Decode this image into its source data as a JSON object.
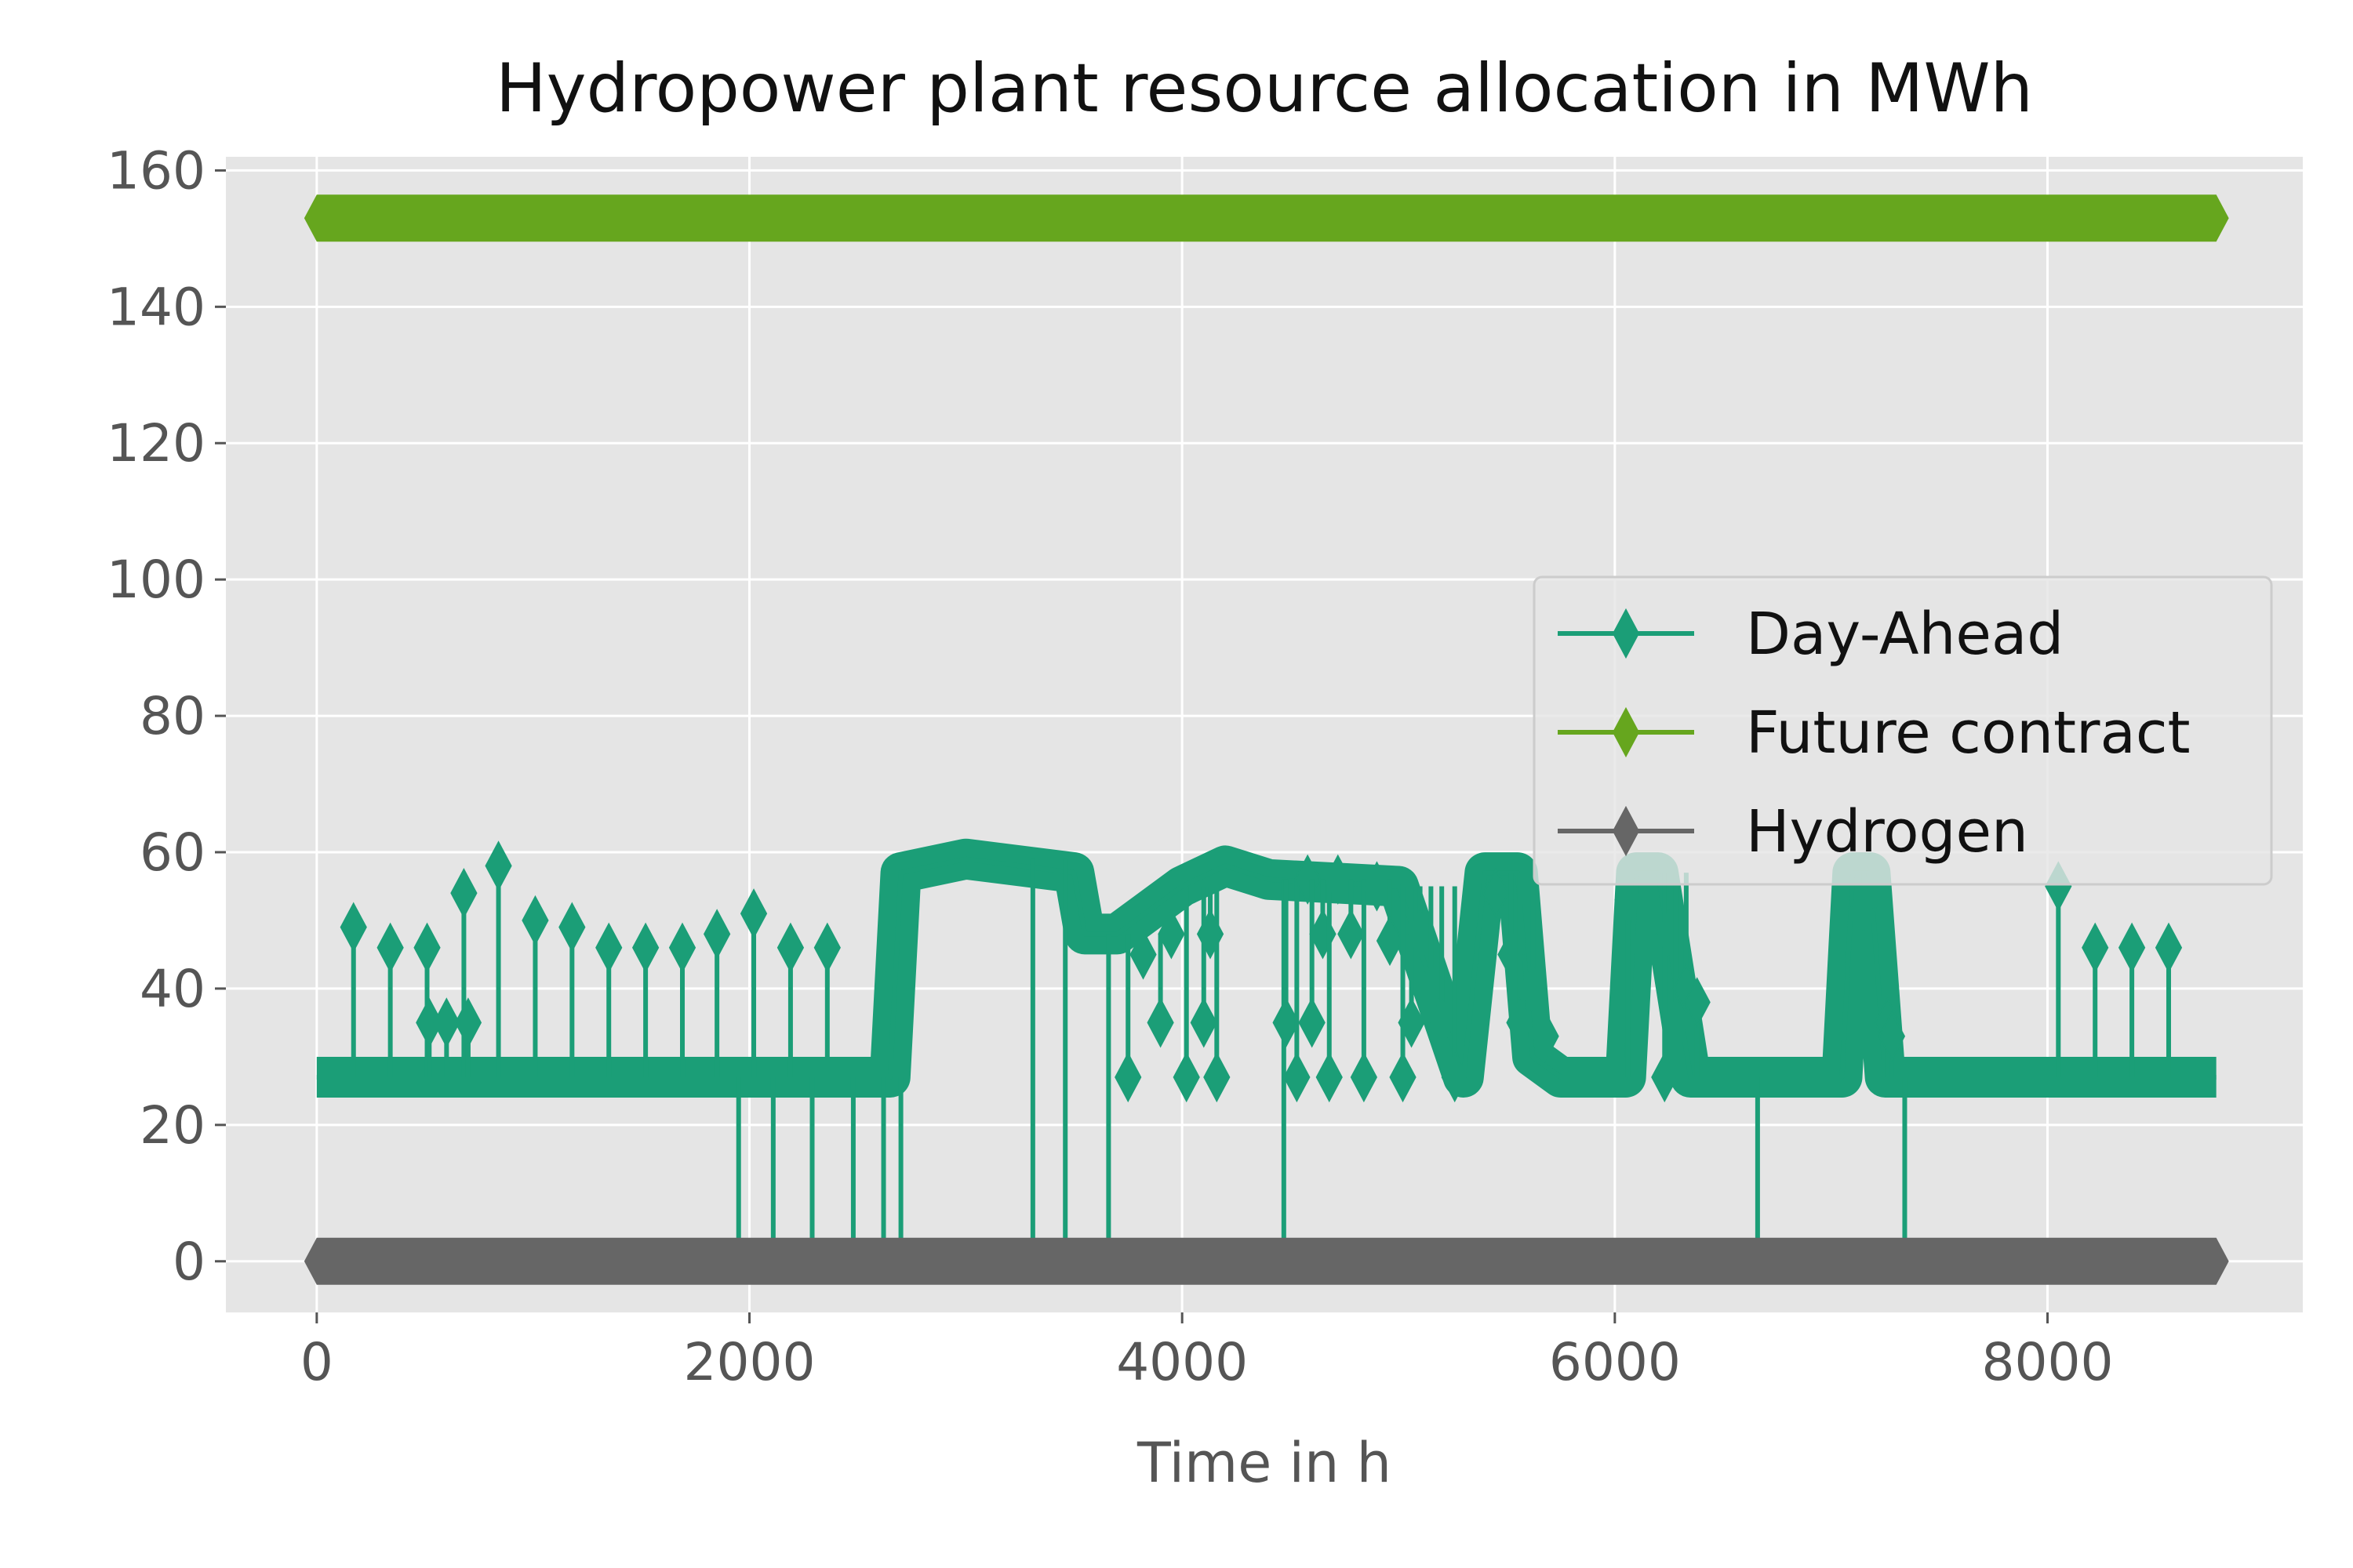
{
  "chart_data": {
    "type": "line",
    "title": "Hydropower plant resource allocation in MWh",
    "xlabel": "Time in h",
    "ylabel": "",
    "xlim": [
      -420,
      9180
    ],
    "ylim": [
      -7.5,
      162
    ],
    "x_ticks": [
      0,
      2000,
      4000,
      6000,
      8000
    ],
    "x_tick_labels": [
      "0",
      "2000",
      "4000",
      "6000",
      "8000"
    ],
    "y_ticks": [
      0,
      20,
      40,
      60,
      80,
      100,
      120,
      140,
      160
    ],
    "y_tick_labels": [
      "0",
      "20",
      "40",
      "60",
      "80",
      "100",
      "120",
      "140",
      "160"
    ],
    "grid": true,
    "legend_position": "center-right",
    "marker": "thin-diamond",
    "series": [
      {
        "name": "Day-Ahead",
        "color": "#1b9e77",
        "baseline_points": [
          [
            0,
            27
          ],
          [
            2650,
            27
          ],
          [
            2700,
            57
          ],
          [
            3000,
            59
          ],
          [
            3500,
            57
          ],
          [
            3550,
            48
          ],
          [
            3700,
            48
          ],
          [
            4000,
            55
          ],
          [
            4200,
            58
          ],
          [
            4400,
            56
          ],
          [
            5000,
            55
          ],
          [
            5300,
            27
          ],
          [
            5400,
            57
          ],
          [
            5550,
            57
          ],
          [
            5620,
            30
          ],
          [
            5750,
            27
          ],
          [
            6050,
            27
          ],
          [
            6100,
            57
          ],
          [
            6200,
            57
          ],
          [
            6350,
            27
          ],
          [
            7050,
            27
          ],
          [
            7100,
            57
          ],
          [
            7180,
            57
          ],
          [
            7250,
            27
          ],
          [
            8780,
            27
          ]
        ],
        "spikes": [
          [
            170,
            49
          ],
          [
            340,
            46
          ],
          [
            510,
            46
          ],
          [
            520,
            35
          ],
          [
            600,
            35
          ],
          [
            680,
            54
          ],
          [
            700,
            35
          ],
          [
            840,
            58
          ],
          [
            1010,
            50
          ],
          [
            1180,
            49
          ],
          [
            1350,
            46
          ],
          [
            1520,
            46
          ],
          [
            1690,
            46
          ],
          [
            1850,
            48
          ],
          [
            2020,
            51
          ],
          [
            2190,
            46
          ],
          [
            2360,
            46
          ],
          [
            1950,
            0
          ],
          [
            2110,
            0
          ],
          [
            2290,
            0
          ],
          [
            2480,
            0
          ],
          [
            2620,
            0
          ],
          [
            2700,
            0
          ],
          [
            3310,
            0
          ],
          [
            3460,
            0
          ],
          [
            3660,
            0
          ],
          [
            3750,
            27
          ],
          [
            3820,
            45
          ],
          [
            3900,
            35
          ],
          [
            3950,
            48
          ],
          [
            4020,
            27
          ],
          [
            4100,
            35
          ],
          [
            4130,
            48
          ],
          [
            4160,
            27
          ],
          [
            4470,
            0
          ],
          [
            4480,
            35
          ],
          [
            4530,
            27
          ],
          [
            4580,
            56
          ],
          [
            4600,
            35
          ],
          [
            4650,
            48
          ],
          [
            4680,
            27
          ],
          [
            4720,
            56
          ],
          [
            4780,
            48
          ],
          [
            4840,
            27
          ],
          [
            4900,
            55
          ],
          [
            4960,
            47
          ],
          [
            5020,
            27
          ],
          [
            5060,
            35
          ],
          [
            5100,
            48
          ],
          [
            5150,
            40
          ],
          [
            5200,
            35
          ],
          [
            5260,
            27
          ],
          [
            5450,
            54
          ],
          [
            5520,
            45
          ],
          [
            5560,
            35
          ],
          [
            5620,
            40
          ],
          [
            5680,
            33
          ],
          [
            6060,
            53
          ],
          [
            6230,
            27
          ],
          [
            6250,
            48
          ],
          [
            6280,
            35
          ],
          [
            6330,
            40
          ],
          [
            6380,
            38
          ],
          [
            6660,
            0
          ],
          [
            7150,
            52
          ],
          [
            7200,
            55
          ],
          [
            7260,
            35
          ],
          [
            7280,
            33
          ],
          [
            7340,
            0
          ],
          [
            8050,
            55
          ],
          [
            8220,
            46
          ],
          [
            8390,
            46
          ],
          [
            8560,
            46
          ]
        ]
      },
      {
        "name": "Future contract",
        "color": "#66a61e",
        "values": [
          [
            0,
            153
          ],
          [
            8780,
            153
          ]
        ]
      },
      {
        "name": "Hydrogen",
        "color": "#666666",
        "values": [
          [
            0,
            0
          ],
          [
            8780,
            0
          ]
        ]
      }
    ]
  }
}
